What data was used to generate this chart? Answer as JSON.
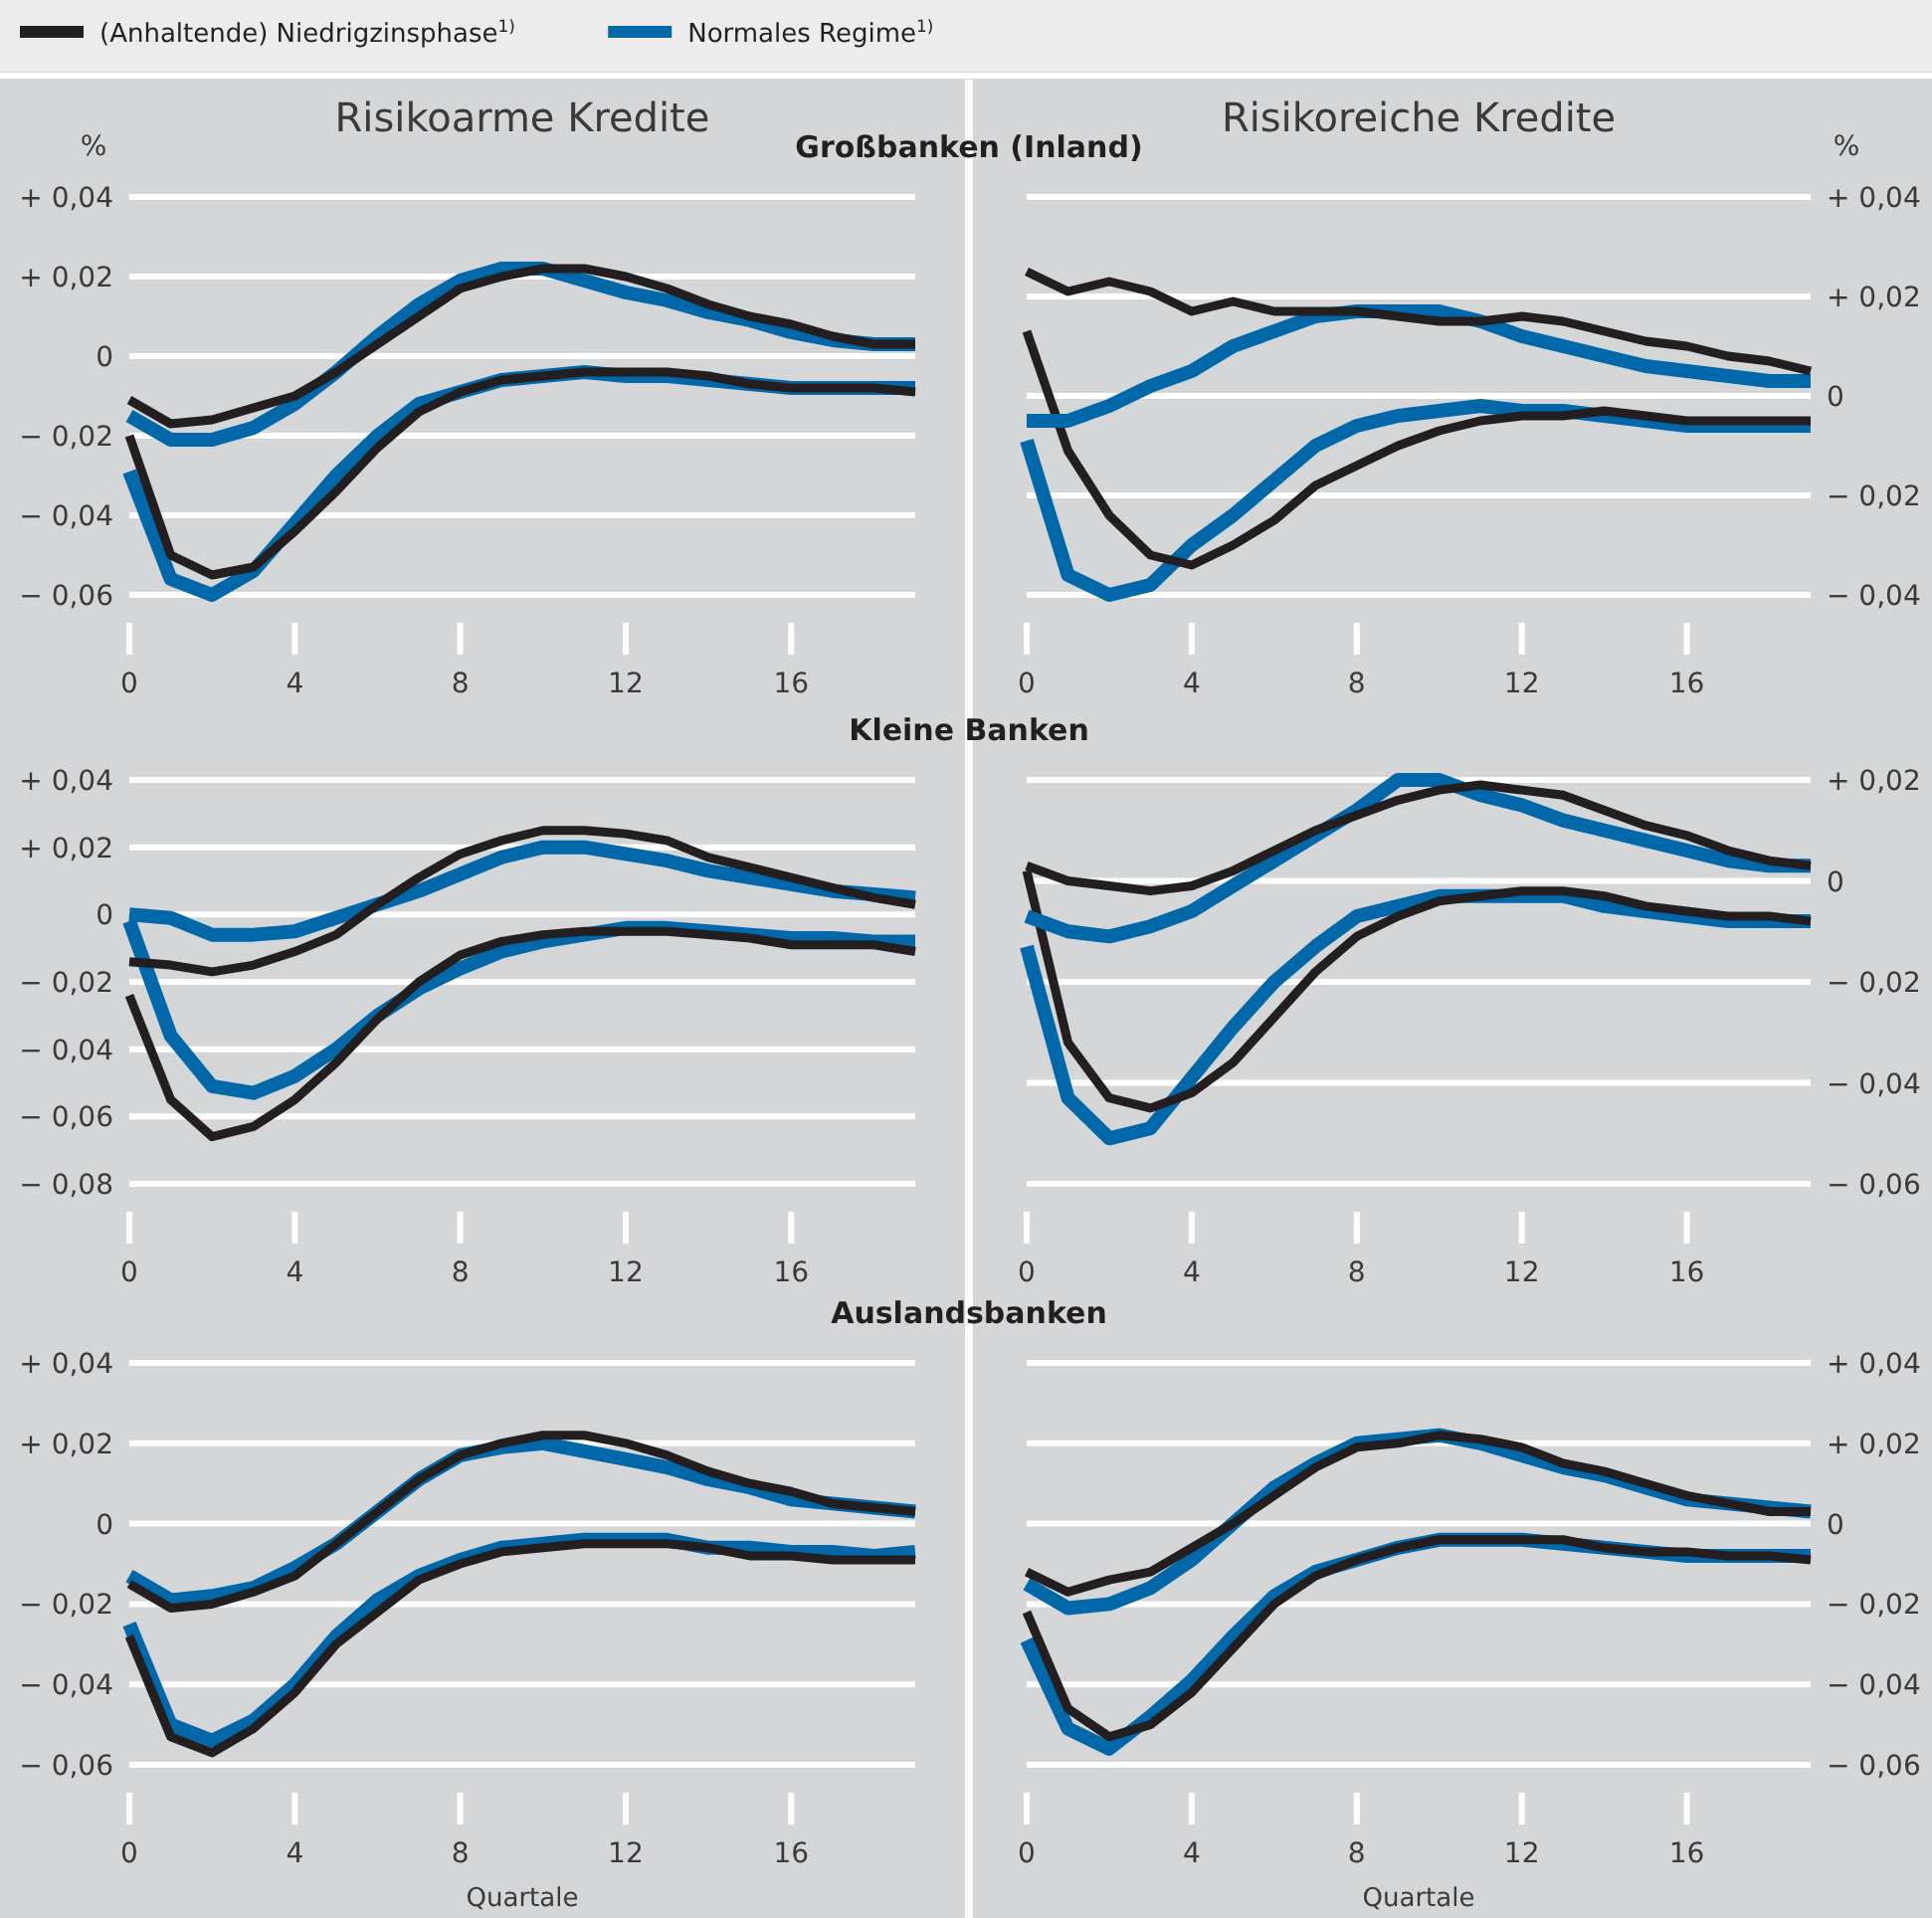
{
  "chart_data": [
    {
      "type": "line",
      "title": "Risikoarme Kredite",
      "subtitle": "Großbanken (Inland)",
      "ylabel": "%",
      "legend": "top",
      "grid": "y",
      "line_style": "solid",
      "marker": "none",
      "x": [
        0,
        1,
        2,
        3,
        4,
        5,
        6,
        7,
        8,
        9,
        10,
        11,
        12,
        13,
        14,
        15,
        16,
        17,
        18,
        19
      ],
      "xlim": [
        0,
        19
      ],
      "xticks": [
        0,
        4,
        8,
        12,
        16
      ],
      "ylim": [
        -0.06,
        0.04
      ],
      "yticks": [
        {
          "value": -0.06,
          "label": "− 0,06"
        },
        {
          "value": -0.04,
          "label": "− 0,04"
        },
        {
          "value": -0.02,
          "label": "− 0,02"
        },
        {
          "value": 0,
          "label": "0"
        },
        {
          "value": 0.02,
          "label": "+ 0,02"
        },
        {
          "value": 0.04,
          "label": "+ 0,04"
        }
      ],
      "series": [
        {
          "name": "(Anhaltende) Niedrigzinsphase$^{1)}$",
          "color": "#231f20",
          "values": [
            -0.011,
            -0.017,
            -0.016,
            -0.013,
            -0.01,
            -0.004,
            0.003,
            0.01,
            0.017,
            0.02,
            0.022,
            0.022,
            0.02,
            0.017,
            0.013,
            0.01,
            0.008,
            0.005,
            0.003,
            0.003
          ]
        },
        {
          "name": "Normales Regime$^{1)}$",
          "color": "#0068a8",
          "values": [
            -0.015,
            -0.021,
            -0.021,
            -0.018,
            -0.012,
            -0.004,
            0.005,
            0.013,
            0.019,
            0.022,
            0.022,
            0.019,
            0.016,
            0.014,
            0.011,
            0.009,
            0.006,
            0.004,
            0.003,
            0.003
          ]
        },
        {
          "color": "#231f20",
          "values": [
            -0.02,
            -0.05,
            -0.055,
            -0.053,
            -0.044,
            -0.034,
            -0.023,
            -0.014,
            -0.009,
            -0.006,
            -0.005,
            -0.004,
            -0.004,
            -0.004,
            -0.005,
            -0.007,
            -0.008,
            -0.008,
            -0.008,
            -0.009
          ]
        },
        {
          "color": "#0068a8",
          "values": [
            -0.029,
            -0.056,
            -0.06,
            -0.054,
            -0.042,
            -0.03,
            -0.02,
            -0.012,
            -0.009,
            -0.006,
            -0.005,
            -0.004,
            -0.005,
            -0.005,
            -0.006,
            -0.007,
            -0.008,
            -0.008,
            -0.008,
            -0.008
          ]
        }
      ]
    },
    {
      "type": "line",
      "title": "Risikoreiche Kredite",
      "y2label": "%",
      "grid": "y",
      "line_style": "solid",
      "marker": "none",
      "x": [
        0,
        1,
        2,
        3,
        4,
        5,
        6,
        7,
        8,
        9,
        10,
        11,
        12,
        13,
        14,
        15,
        16,
        17,
        18,
        19
      ],
      "xlim": [
        0,
        19
      ],
      "xticks": [
        0,
        4,
        8,
        12,
        16
      ],
      "y2lim": [
        -0.04,
        0.04
      ],
      "y2ticks": [
        {
          "value": -0.04,
          "label": "− 0,04"
        },
        {
          "value": -0.02,
          "label": "− 0,02"
        },
        {
          "value": 0,
          "label": "0"
        },
        {
          "value": 0.02,
          "label": "+ 0,02"
        },
        {
          "value": 0.04,
          "label": "+ 0,04"
        }
      ],
      "series": [
        {
          "color": "#231f20",
          "axis": "y2",
          "values": [
            0.025,
            0.021,
            0.023,
            0.021,
            0.017,
            0.019,
            0.017,
            0.017,
            0.017,
            0.016,
            0.015,
            0.015,
            0.016,
            0.015,
            0.013,
            0.011,
            0.01,
            0.008,
            0.007,
            0.005
          ]
        },
        {
          "color": "#0068a8",
          "axis": "y2",
          "values": [
            -0.005,
            -0.005,
            -0.002,
            0.002,
            0.005,
            0.01,
            0.013,
            0.016,
            0.017,
            0.017,
            0.017,
            0.015,
            0.012,
            0.01,
            0.008,
            0.006,
            0.005,
            0.004,
            0.003,
            0.003
          ]
        },
        {
          "color": "#231f20",
          "axis": "y2",
          "values": [
            0.013,
            -0.011,
            -0.024,
            -0.032,
            -0.034,
            -0.03,
            -0.025,
            -0.018,
            -0.014,
            -0.01,
            -0.007,
            -0.005,
            -0.004,
            -0.004,
            -0.003,
            -0.004,
            -0.005,
            -0.005,
            -0.005,
            -0.005
          ]
        },
        {
          "color": "#0068a8",
          "axis": "y2",
          "values": [
            -0.009,
            -0.036,
            -0.04,
            -0.038,
            -0.03,
            -0.024,
            -0.017,
            -0.01,
            -0.006,
            -0.004,
            -0.003,
            -0.002,
            -0.003,
            -0.003,
            -0.004,
            -0.005,
            -0.006,
            -0.006,
            -0.006,
            -0.006
          ]
        }
      ]
    },
    {
      "type": "line",
      "subtitle": "Kleine Banken",
      "grid": "y",
      "line_style": "solid",
      "marker": "none",
      "x": [
        0,
        1,
        2,
        3,
        4,
        5,
        6,
        7,
        8,
        9,
        10,
        11,
        12,
        13,
        14,
        15,
        16,
        17,
        18,
        19
      ],
      "xlim": [
        0,
        19
      ],
      "xticks": [
        0,
        4,
        8,
        12,
        16
      ],
      "ylim": [
        -0.08,
        0.04
      ],
      "yticks": [
        {
          "value": -0.08,
          "label": "− 0,08"
        },
        {
          "value": -0.06,
          "label": "− 0,06"
        },
        {
          "value": -0.04,
          "label": "− 0,04"
        },
        {
          "value": -0.02,
          "label": "− 0,02"
        },
        {
          "value": 0,
          "label": "0"
        },
        {
          "value": 0.02,
          "label": "+ 0,02"
        },
        {
          "value": 0.04,
          "label": "+ 0,04"
        }
      ],
      "series": [
        {
          "color": "#231f20",
          "values": [
            -0.014,
            -0.015,
            -0.017,
            -0.015,
            -0.011,
            -0.006,
            0.003,
            0.011,
            0.018,
            0.022,
            0.025,
            0.025,
            0.024,
            0.022,
            0.017,
            0.014,
            0.011,
            0.008,
            0.005,
            0.003
          ]
        },
        {
          "color": "#0068a8",
          "values": [
            0.0,
            -0.001,
            -0.006,
            -0.006,
            -0.005,
            -0.001,
            0.003,
            0.007,
            0.012,
            0.017,
            0.02,
            0.02,
            0.018,
            0.016,
            0.013,
            0.011,
            0.009,
            0.007,
            0.006,
            0.005
          ]
        },
        {
          "color": "#231f20",
          "values": [
            -0.024,
            -0.055,
            -0.066,
            -0.063,
            -0.055,
            -0.044,
            -0.031,
            -0.02,
            -0.012,
            -0.008,
            -0.006,
            -0.005,
            -0.005,
            -0.005,
            -0.006,
            -0.007,
            -0.009,
            -0.009,
            -0.009,
            -0.011
          ]
        },
        {
          "color": "#0068a8",
          "values": [
            -0.002,
            -0.036,
            -0.051,
            -0.053,
            -0.048,
            -0.04,
            -0.03,
            -0.022,
            -0.016,
            -0.011,
            -0.008,
            -0.006,
            -0.004,
            -0.004,
            -0.005,
            -0.006,
            -0.007,
            -0.007,
            -0.008,
            -0.008
          ]
        }
      ]
    },
    {
      "type": "line",
      "grid": "y",
      "line_style": "solid",
      "marker": "none",
      "x": [
        0,
        1,
        2,
        3,
        4,
        5,
        6,
        7,
        8,
        9,
        10,
        11,
        12,
        13,
        14,
        15,
        16,
        17,
        18,
        19
      ],
      "xlim": [
        0,
        19
      ],
      "xticks": [
        0,
        4,
        8,
        12,
        16
      ],
      "y2lim": [
        -0.06,
        0.02
      ],
      "y2ticks": [
        {
          "value": -0.06,
          "label": "− 0,06"
        },
        {
          "value": -0.04,
          "label": "− 0,04"
        },
        {
          "value": -0.02,
          "label": "− 0,02"
        },
        {
          "value": 0,
          "label": "0"
        },
        {
          "value": 0.02,
          "label": "+ 0,02"
        }
      ],
      "series": [
        {
          "color": "#231f20",
          "axis": "y2",
          "values": [
            0.003,
            0.0,
            -0.001,
            -0.002,
            -0.001,
            0.002,
            0.006,
            0.01,
            0.013,
            0.016,
            0.018,
            0.019,
            0.018,
            0.017,
            0.014,
            0.011,
            0.009,
            0.006,
            0.004,
            0.003
          ]
        },
        {
          "color": "#0068a8",
          "axis": "y2",
          "values": [
            -0.007,
            -0.01,
            -0.011,
            -0.009,
            -0.006,
            -0.001,
            0.004,
            0.009,
            0.014,
            0.02,
            0.02,
            0.017,
            0.015,
            0.012,
            0.01,
            0.008,
            0.006,
            0.004,
            0.003,
            0.003
          ]
        },
        {
          "color": "#231f20",
          "axis": "y2",
          "values": [
            0.002,
            -0.032,
            -0.043,
            -0.045,
            -0.042,
            -0.036,
            -0.027,
            -0.018,
            -0.011,
            -0.007,
            -0.004,
            -0.003,
            -0.002,
            -0.002,
            -0.003,
            -0.005,
            -0.006,
            -0.007,
            -0.007,
            -0.008
          ]
        },
        {
          "color": "#0068a8",
          "axis": "y2",
          "values": [
            -0.013,
            -0.043,
            -0.051,
            -0.049,
            -0.039,
            -0.029,
            -0.02,
            -0.013,
            -0.007,
            -0.005,
            -0.003,
            -0.003,
            -0.003,
            -0.003,
            -0.005,
            -0.006,
            -0.007,
            -0.008,
            -0.008,
            -0.008
          ]
        }
      ]
    },
    {
      "type": "line",
      "subtitle": "Auslandsbanken",
      "xlabel": "Quartale",
      "grid": "y",
      "line_style": "solid",
      "marker": "none",
      "x": [
        0,
        1,
        2,
        3,
        4,
        5,
        6,
        7,
        8,
        9,
        10,
        11,
        12,
        13,
        14,
        15,
        16,
        17,
        18,
        19
      ],
      "xlim": [
        0,
        19
      ],
      "xticks": [
        0,
        4,
        8,
        12,
        16
      ],
      "ylim": [
        -0.06,
        0.04
      ],
      "yticks": [
        {
          "value": -0.06,
          "label": "− 0,06"
        },
        {
          "value": -0.04,
          "label": "− 0,04"
        },
        {
          "value": -0.02,
          "label": "− 0,02"
        },
        {
          "value": 0,
          "label": "0"
        },
        {
          "value": 0.02,
          "label": "+ 0,02"
        },
        {
          "value": 0.04,
          "label": "+ 0,04"
        }
      ],
      "series": [
        {
          "color": "#231f20",
          "values": [
            -0.015,
            -0.021,
            -0.02,
            -0.017,
            -0.013,
            -0.005,
            0.003,
            0.011,
            0.017,
            0.02,
            0.022,
            0.022,
            0.02,
            0.017,
            0.013,
            0.01,
            0.008,
            0.005,
            0.004,
            0.003
          ]
        },
        {
          "color": "#0068a8",
          "values": [
            -0.013,
            -0.019,
            -0.018,
            -0.016,
            -0.011,
            -0.005,
            0.003,
            0.011,
            0.017,
            0.019,
            0.02,
            0.018,
            0.016,
            0.014,
            0.011,
            0.009,
            0.006,
            0.005,
            0.004,
            0.003
          ]
        },
        {
          "color": "#231f20",
          "values": [
            -0.028,
            -0.053,
            -0.057,
            -0.051,
            -0.042,
            -0.03,
            -0.022,
            -0.014,
            -0.01,
            -0.007,
            -0.006,
            -0.005,
            -0.005,
            -0.005,
            -0.006,
            -0.008,
            -0.008,
            -0.009,
            -0.009,
            -0.009
          ]
        },
        {
          "color": "#0068a8",
          "values": [
            -0.025,
            -0.05,
            -0.054,
            -0.049,
            -0.04,
            -0.028,
            -0.019,
            -0.013,
            -0.009,
            -0.006,
            -0.005,
            -0.004,
            -0.004,
            -0.004,
            -0.006,
            -0.006,
            -0.007,
            -0.007,
            -0.008,
            -0.007
          ]
        }
      ]
    },
    {
      "type": "line",
      "xlabel": "Quartale",
      "grid": "y",
      "line_style": "solid",
      "marker": "none",
      "x": [
        0,
        1,
        2,
        3,
        4,
        5,
        6,
        7,
        8,
        9,
        10,
        11,
        12,
        13,
        14,
        15,
        16,
        17,
        18,
        19
      ],
      "xlim": [
        0,
        19
      ],
      "xticks": [
        0,
        4,
        8,
        12,
        16
      ],
      "y2lim": [
        -0.06,
        0.04
      ],
      "y2ticks": [
        {
          "value": -0.06,
          "label": "− 0,06"
        },
        {
          "value": -0.04,
          "label": "− 0,04"
        },
        {
          "value": -0.02,
          "label": "− 0,02"
        },
        {
          "value": 0,
          "label": "0"
        },
        {
          "value": 0.02,
          "label": "+ 0,02"
        },
        {
          "value": 0.04,
          "label": "+ 0,04"
        }
      ],
      "series": [
        {
          "color": "#231f20",
          "axis": "y2",
          "values": [
            -0.012,
            -0.017,
            -0.014,
            -0.012,
            -0.006,
            0.0,
            0.007,
            0.014,
            0.019,
            0.02,
            0.022,
            0.021,
            0.019,
            0.015,
            0.013,
            0.01,
            0.007,
            0.005,
            0.003,
            0.003
          ]
        },
        {
          "color": "#0068a8",
          "axis": "y2",
          "values": [
            -0.015,
            -0.021,
            -0.02,
            -0.016,
            -0.009,
            0.0,
            0.009,
            0.015,
            0.02,
            0.021,
            0.022,
            0.02,
            0.017,
            0.014,
            0.012,
            0.009,
            0.006,
            0.005,
            0.004,
            0.003
          ]
        },
        {
          "color": "#231f20",
          "axis": "y2",
          "values": [
            -0.022,
            -0.046,
            -0.053,
            -0.05,
            -0.042,
            -0.031,
            -0.02,
            -0.013,
            -0.009,
            -0.006,
            -0.004,
            -0.004,
            -0.004,
            -0.004,
            -0.006,
            -0.007,
            -0.007,
            -0.008,
            -0.008,
            -0.009
          ]
        },
        {
          "color": "#0068a8",
          "axis": "y2",
          "values": [
            -0.029,
            -0.051,
            -0.056,
            -0.048,
            -0.039,
            -0.028,
            -0.018,
            -0.012,
            -0.009,
            -0.006,
            -0.004,
            -0.004,
            -0.004,
            -0.005,
            -0.006,
            -0.007,
            -0.008,
            -0.008,
            -0.008,
            -0.008
          ]
        }
      ]
    }
  ]
}
